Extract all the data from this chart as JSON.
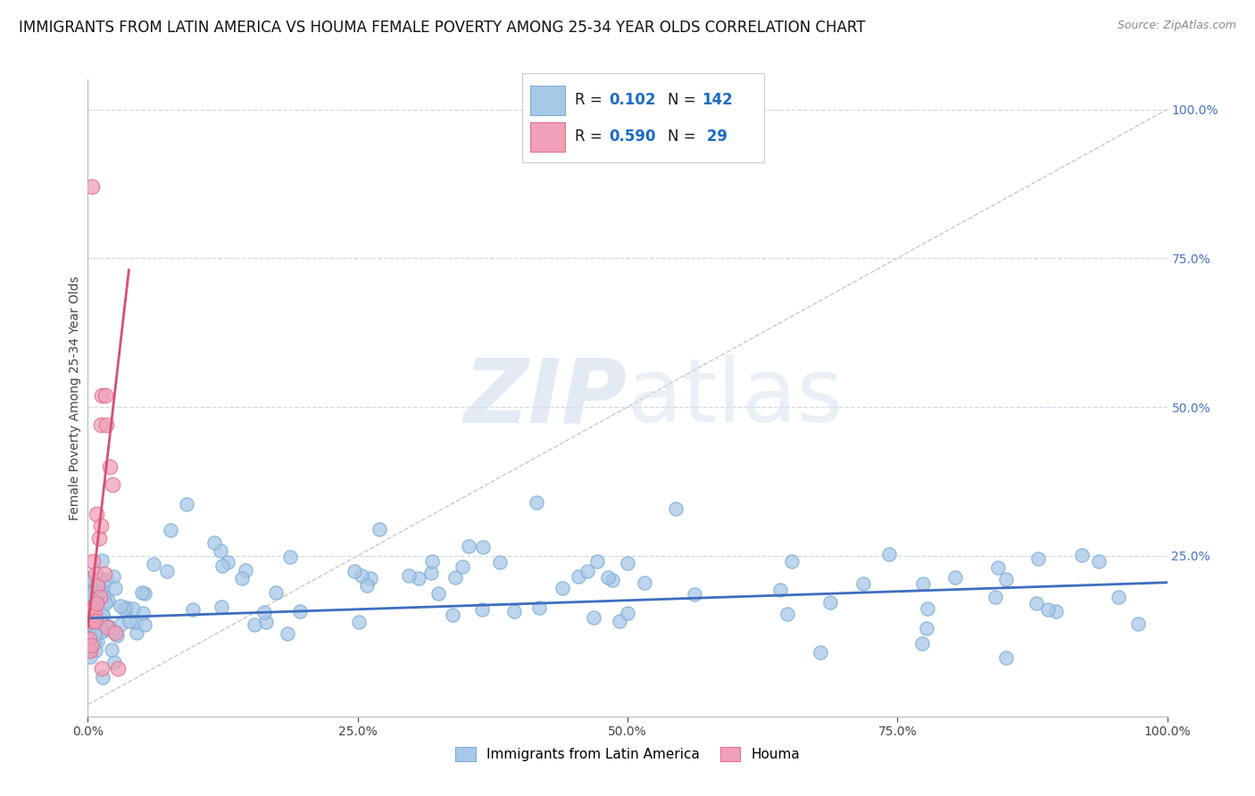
{
  "title": "IMMIGRANTS FROM LATIN AMERICA VS HOUMA FEMALE POVERTY AMONG 25-34 YEAR OLDS CORRELATION CHART",
  "source": "Source: ZipAtlas.com",
  "ylabel": "Female Poverty Among 25-34 Year Olds",
  "xlim": [
    0,
    1.0
  ],
  "ylim": [
    -0.02,
    1.05
  ],
  "xticks": [
    0.0,
    0.25,
    0.5,
    0.75,
    1.0
  ],
  "xticklabels": [
    "0.0%",
    "25.0%",
    "50.0%",
    "75.0%",
    "100.0%"
  ],
  "right_yticklabels": [
    "25.0%",
    "50.0%",
    "75.0%",
    "100.0%"
  ],
  "right_ytick_vals": [
    0.25,
    0.5,
    0.75,
    1.0
  ],
  "blue_color": "#a8c8e8",
  "pink_color": "#f0a0b8",
  "blue_edge_color": "#7aadd4",
  "pink_edge_color": "#e07090",
  "blue_line_color": "#3d6ebf",
  "pink_line_color": "#d94f70",
  "diag_line_color": "#c8c8c8",
  "grid_color": "#d0d8e8",
  "n_blue": 142,
  "n_pink": 29,
  "r_blue": 0.102,
  "r_pink": 0.59,
  "legend_label_blue": "Immigrants from Latin America",
  "legend_label_pink": "Houma",
  "watermark_zip": "ZIP",
  "watermark_atlas": "atlas",
  "background_color": "#ffffff",
  "title_fontsize": 12,
  "source_fontsize": 9,
  "axis_label_fontsize": 10,
  "tick_fontsize": 10,
  "right_tick_color": "#4472c4",
  "legend_r_color": "#1a1a1a",
  "legend_val_color": "#1a6cc4"
}
